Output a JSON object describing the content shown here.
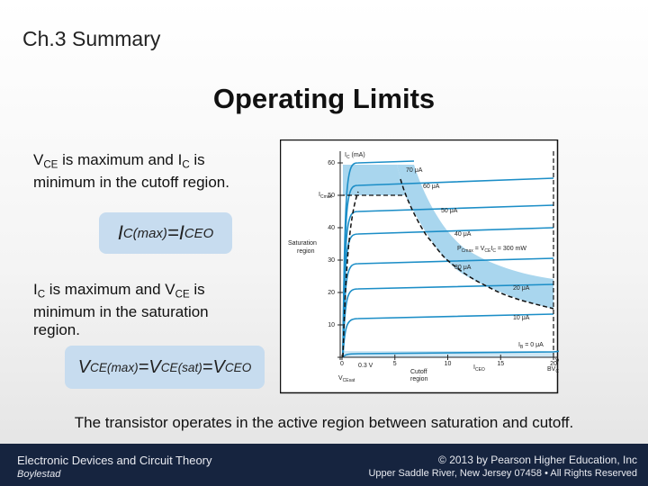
{
  "header": "Ch.3 Summary",
  "title": "Operating Limits",
  "bullets": [
    {
      "parts": [
        "V",
        "CE",
        " is maximum and ",
        "I",
        "C",
        " is minimum in the cutoff region."
      ]
    },
    {
      "parts": [
        "I",
        "C",
        " is maximum and ",
        "V",
        "CE",
        " is minimum in the saturation region."
      ]
    }
  ],
  "formulas": [
    {
      "parts": [
        "I",
        "C(max)",
        " = ",
        "I",
        "CEO"
      ]
    },
    {
      "parts": [
        "V",
        "CE(max)",
        " = ",
        "V",
        "CE(sat)",
        " = ",
        "V",
        "CEO"
      ]
    }
  ],
  "figure": {
    "y_axis_label": [
      "I",
      "C",
      " (mA)"
    ],
    "x_axis_label": [
      "V",
      "CE",
      " (V)"
    ],
    "yticks": [
      10,
      20,
      30,
      40,
      50,
      60
    ],
    "xticks": [
      0,
      5,
      10,
      15,
      20
    ],
    "curve_labels": [
      "70 μA",
      "60 μA",
      "50 μA",
      "40 μA",
      "30 μA",
      "20 μA",
      "10 μA"
    ],
    "ib_zero": [
      "I",
      "B",
      " = 0 μA"
    ],
    "ic_max": [
      "I",
      "C",
      "max"
    ],
    "power": [
      "P",
      "C",
      "max",
      " = V",
      "CE",
      "I",
      "C",
      " = 300 mW"
    ],
    "saturation": [
      "Saturation",
      "region"
    ],
    "cutoff": [
      "Cutoff",
      "region"
    ],
    "v_sat": "0.3 V",
    "iceo": [
      "I",
      "CEO"
    ],
    "bvceo": [
      "BV",
      "CEO"
    ],
    "vcesat": [
      "V",
      "CE",
      "sat"
    ]
  },
  "statement": "The transistor operates in the active region between saturation and cutoff.",
  "footer": {
    "book": "Electronic Devices and Circuit Theory",
    "author": "Boylestad",
    "copyright": "© 2013 by Pearson Higher Education, Inc",
    "address": "Upper Saddle River, New Jersey 07458 • All Rights Reserved"
  }
}
